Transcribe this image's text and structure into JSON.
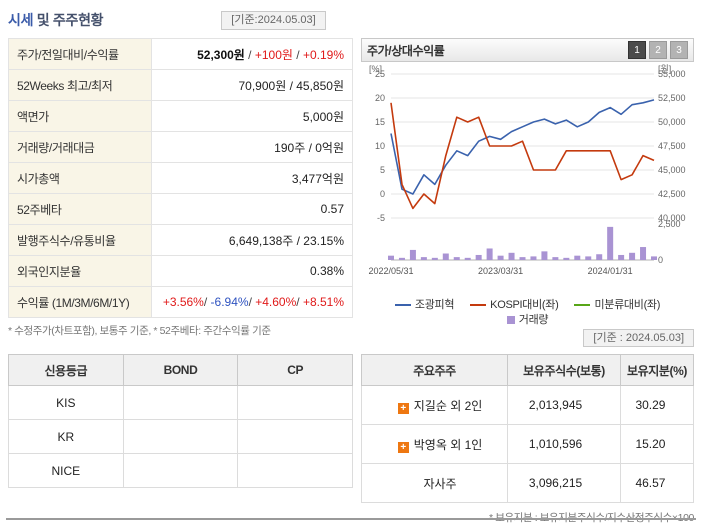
{
  "page": {
    "title_primary": "시세",
    "title_secondary": "및 주주현황",
    "ref_date_top": "[기준:2024.05.03]",
    "ref_date_chart": "[기준 : 2024.05.03]"
  },
  "quote": {
    "rows": [
      {
        "label": "주가/전일대비/수익률",
        "segments": [
          {
            "text": "52,300원",
            "cls": "strong"
          },
          {
            "text": " / ",
            "cls": "sep"
          },
          {
            "text": "+100원",
            "cls": "up"
          },
          {
            "text": " / ",
            "cls": "sep"
          },
          {
            "text": "+0.19%",
            "cls": "up"
          }
        ]
      },
      {
        "label": "52Weeks 최고/최저",
        "segments": [
          {
            "text": "70,900원 / 45,850원",
            "cls": "norm"
          }
        ]
      },
      {
        "label": "액면가",
        "segments": [
          {
            "text": "5,000원",
            "cls": "norm"
          }
        ]
      },
      {
        "label": "거래량/거래대금",
        "segments": [
          {
            "text": "190주 / 0억원",
            "cls": "norm"
          }
        ]
      },
      {
        "label": "시가총액",
        "segments": [
          {
            "text": "3,477억원",
            "cls": "norm"
          }
        ]
      },
      {
        "label": "52주베타",
        "segments": [
          {
            "text": "0.57",
            "cls": "norm"
          }
        ]
      },
      {
        "label": "발행주식수/유통비율",
        "segments": [
          {
            "text": "6,649,138주 / 23.15%",
            "cls": "norm"
          }
        ]
      },
      {
        "label": "외국인지분율",
        "segments": [
          {
            "text": "0.38%",
            "cls": "norm"
          }
        ]
      },
      {
        "label": "수익률 (1M/3M/6M/1Y)",
        "segments": [
          {
            "text": "+3.56%",
            "cls": "up"
          },
          {
            "text": "/ ",
            "cls": "sep"
          },
          {
            "text": "-6.94%",
            "cls": "down"
          },
          {
            "text": "/ ",
            "cls": "sep"
          },
          {
            "text": "+4.60%",
            "cls": "up"
          },
          {
            "text": "/ ",
            "cls": "sep"
          },
          {
            "text": "+8.51%",
            "cls": "up"
          }
        ]
      }
    ],
    "footnote": "* 수정주가(차트포함), 보통주 기준, * 52주베타: 주간수익률 기준"
  },
  "chart": {
    "header": "주가/상대수익률",
    "buttons": [
      "1",
      "2",
      "3"
    ],
    "selected_button": "1"
  },
  "chart_data": {
    "type": "line",
    "title": "주가/상대수익률",
    "n_points": 25,
    "x_ticks": [
      "2022/05/31",
      "2023/03/31",
      "2024/01/31"
    ],
    "x_tick_indices": [
      0,
      10,
      20
    ],
    "left_axis": {
      "label": "[%]",
      "ticks": [
        25,
        20,
        15,
        10,
        5,
        0,
        -5
      ],
      "range": [
        -5,
        25
      ]
    },
    "right_axis": {
      "label": "[원]",
      "ticks": [
        "55,000",
        "52,500",
        "50,000",
        "47,500",
        "45,000",
        "42,500",
        "40,000"
      ],
      "tick_values": [
        55000,
        52500,
        50000,
        47500,
        45000,
        42500,
        40000
      ],
      "range": [
        40000,
        55000
      ]
    },
    "volume_axis": {
      "ticks": [
        "2,500",
        "0"
      ],
      "range": [
        0,
        2500
      ]
    },
    "series": [
      {
        "name": "조광피혁",
        "kind": "line",
        "axis": "right",
        "color": "#3a62ad",
        "values": [
          48800,
          43000,
          42500,
          44500,
          43500,
          45500,
          47000,
          46500,
          48000,
          48500,
          48200,
          49000,
          49500,
          50000,
          50300,
          49800,
          50200,
          49500,
          50000,
          51000,
          51500,
          50800,
          51800,
          52000,
          52300
        ]
      },
      {
        "name": "KOSPI대비(좌)",
        "kind": "line",
        "axis": "left",
        "color": "#c43a0e",
        "values": [
          19,
          2,
          -3,
          0,
          -2,
          8,
          16,
          15,
          16,
          10,
          10,
          10,
          11,
          5,
          5,
          5,
          9,
          9,
          9,
          9,
          9,
          3,
          4,
          8,
          7
        ]
      },
      {
        "name": "미분류대비(좌)",
        "kind": "line",
        "axis": "left",
        "color": "#58a618",
        "values": []
      },
      {
        "name": "거래량",
        "kind": "bar",
        "axis": "volume",
        "color": "#a993d3",
        "values": [
          300,
          150,
          700,
          200,
          150,
          450,
          200,
          150,
          350,
          800,
          300,
          500,
          200,
          250,
          600,
          200,
          150,
          300,
          250,
          400,
          2300,
          350,
          500,
          900,
          250
        ]
      }
    ],
    "legend_position": "bottom",
    "grid": true
  },
  "credit": {
    "headers": [
      "신용등급",
      "BOND",
      "CP"
    ],
    "rows": [
      [
        "KIS",
        "",
        ""
      ],
      [
        "KR",
        "",
        ""
      ],
      [
        "NICE",
        "",
        ""
      ]
    ]
  },
  "holders": {
    "headers": [
      "주요주주",
      "보유주식수(보통)",
      "보유지분(%)"
    ],
    "rows": [
      {
        "icon": true,
        "name": "지길순 외 2인",
        "shares": "2,013,945",
        "pct": "30.29"
      },
      {
        "icon": true,
        "name": "박영옥 외 1인",
        "shares": "1,010,596",
        "pct": "15.20"
      },
      {
        "icon": false,
        "name": "자사주",
        "shares": "3,096,215",
        "pct": "46.57"
      }
    ],
    "footnote": "* 보유지분 : 보유지분주식수/지수산정주식수×100",
    "plus_icon_label": "+"
  }
}
